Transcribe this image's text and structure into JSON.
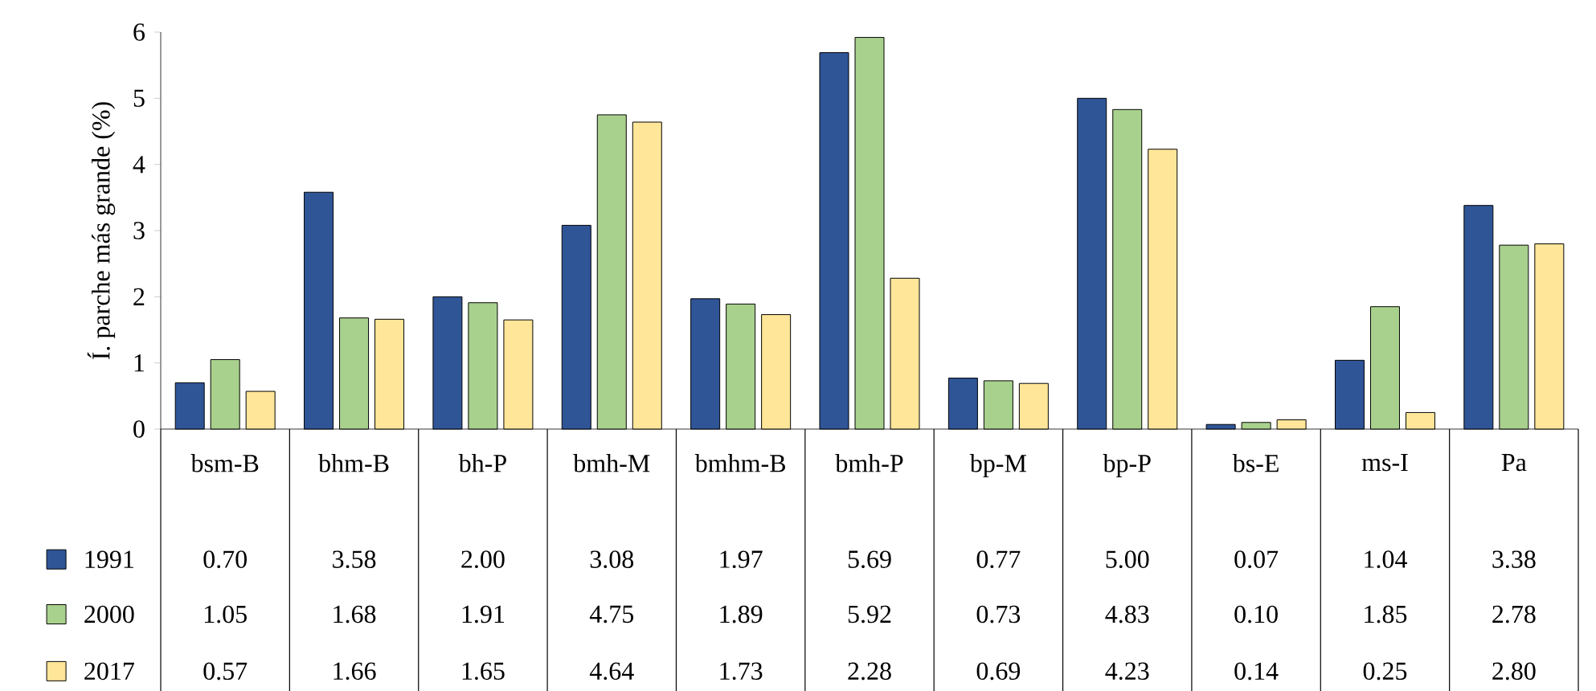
{
  "chart_data": {
    "type": "bar",
    "ylabel": "Í. parche más grande (%)",
    "categories": [
      "bsm-B",
      "bhm-B",
      "bh-P",
      "bmh-M",
      "bmhm-B",
      "bmh-P",
      "bp-M",
      "bp-P",
      "bs-E",
      "ms-I",
      "Pa"
    ],
    "series": [
      {
        "name": "1991",
        "color": "#2f5597",
        "values": [
          0.7,
          3.58,
          2.0,
          3.08,
          1.97,
          5.69,
          0.77,
          5.0,
          0.07,
          1.04,
          3.38
        ],
        "value_labels": [
          "0.70",
          "3.58",
          "2.00",
          "3.08",
          "1.97",
          "5.69",
          "0.77",
          "5.00",
          "0.07",
          "1.04",
          "3.38"
        ]
      },
      {
        "name": "2000",
        "color": "#a9d18e",
        "values": [
          1.05,
          1.68,
          1.91,
          4.75,
          1.89,
          5.92,
          0.73,
          4.83,
          0.1,
          1.85,
          2.78
        ],
        "value_labels": [
          "1.05",
          "1.68",
          "1.91",
          "4.75",
          "1.89",
          "5.92",
          "0.73",
          "4.83",
          "0.10",
          "1.85",
          "2.78"
        ]
      },
      {
        "name": "2017",
        "color": "#ffe699",
        "values": [
          0.57,
          1.66,
          1.65,
          4.64,
          1.73,
          2.28,
          0.69,
          4.23,
          0.14,
          0.25,
          2.8
        ],
        "value_labels": [
          "0.57",
          "1.66",
          "1.65",
          "4.64",
          "1.73",
          "2.28",
          "0.69",
          "4.23",
          "0.14",
          "0.25",
          "2.80"
        ]
      }
    ],
    "legend": "bottom left",
    "ylim": [
      0,
      6
    ],
    "yticks": [
      0,
      1,
      2,
      3,
      4,
      5,
      6
    ]
  }
}
